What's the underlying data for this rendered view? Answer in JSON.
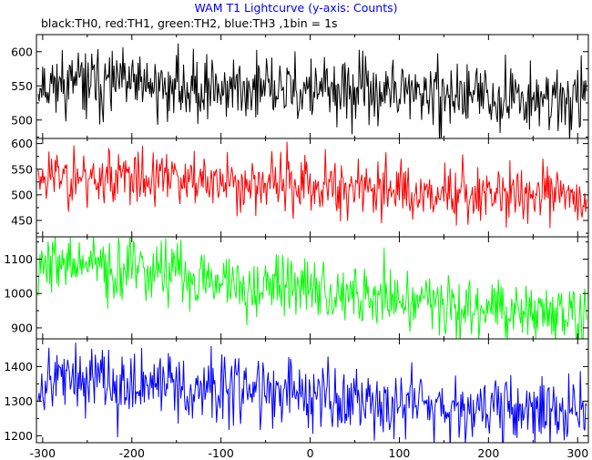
{
  "chart_data": [
    {
      "type": "line",
      "title": "WAM T1 Lightcurve (y-axis: Counts)",
      "subtitle": "black:TH0, red:TH1, green:TH2, blue:TH3 ,1bin = 1s",
      "series": [
        {
          "name": "TH0",
          "color": "#000000",
          "mean_start": 555,
          "mean_end": 530,
          "noise": 24,
          "seed": 11
        }
      ],
      "xlim": [
        -307,
        312
      ],
      "ylim": [
        473,
        625
      ],
      "yticks": [
        500,
        550,
        600
      ]
    },
    {
      "type": "line",
      "series": [
        {
          "name": "TH1",
          "color": "#ff0000",
          "mean_start": 540,
          "mean_end": 495,
          "noise": 28,
          "seed": 23
        }
      ],
      "xlim": [
        -307,
        312
      ],
      "ylim": [
        418,
        610
      ],
      "yticks": [
        450,
        500,
        550,
        600
      ]
    },
    {
      "type": "line",
      "series": [
        {
          "name": "TH2",
          "color": "#00ff00",
          "mean_start": 1095,
          "mean_end": 930,
          "noise": 45,
          "seed": 37
        }
      ],
      "xlim": [
        -307,
        312
      ],
      "ylim": [
        868,
        1165
      ],
      "yticks": [
        900,
        1000,
        1100
      ]
    },
    {
      "type": "line",
      "series": [
        {
          "name": "TH3",
          "color": "#0000ff",
          "mean_start": 1370,
          "mean_end": 1265,
          "noise": 50,
          "seed": 53
        }
      ],
      "xlim": [
        -307,
        312
      ],
      "ylim": [
        1180,
        1480
      ],
      "yticks": [
        1200,
        1300,
        1400
      ]
    }
  ],
  "x_axis": {
    "ticks": [
      -300,
      -200,
      -100,
      0,
      100,
      200,
      300
    ]
  }
}
